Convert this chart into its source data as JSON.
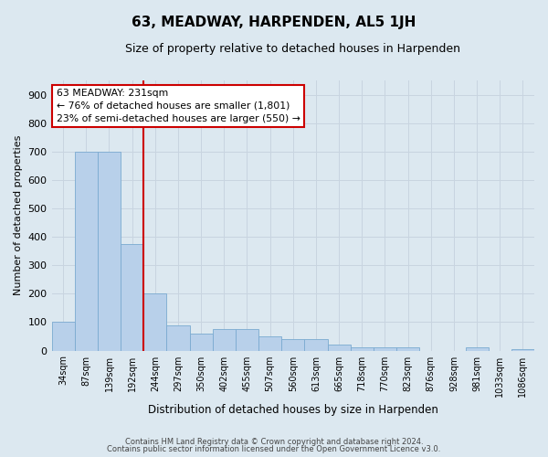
{
  "title": "63, MEADWAY, HARPENDEN, AL5 1JH",
  "subtitle": "Size of property relative to detached houses in Harpenden",
  "xlabel": "Distribution of detached houses by size in Harpenden",
  "ylabel": "Number of detached properties",
  "footer_line1": "Contains HM Land Registry data © Crown copyright and database right 2024.",
  "footer_line2": "Contains public sector information licensed under the Open Government Licence v3.0.",
  "categories": [
    "34sqm",
    "87sqm",
    "139sqm",
    "192sqm",
    "244sqm",
    "297sqm",
    "350sqm",
    "402sqm",
    "455sqm",
    "507sqm",
    "560sqm",
    "613sqm",
    "665sqm",
    "718sqm",
    "770sqm",
    "823sqm",
    "876sqm",
    "928sqm",
    "981sqm",
    "1033sqm",
    "1086sqm"
  ],
  "values": [
    100,
    700,
    700,
    375,
    200,
    90,
    60,
    75,
    75,
    50,
    40,
    40,
    20,
    10,
    10,
    10,
    0,
    0,
    10,
    0,
    5
  ],
  "bar_color": "#b8d0ea",
  "bar_edge_color": "#7aaad0",
  "grid_color": "#c8d4e0",
  "bg_color": "#dce8f0",
  "annotation_text": "63 MEADWAY: 231sqm\n← 76% of detached houses are smaller (1,801)\n23% of semi-detached houses are larger (550) →",
  "annotation_box_color": "#ffffff",
  "annotation_box_edge": "#cc0000",
  "vline_color": "#cc0000",
  "vline_x_index": 3.5,
  "ylim": [
    0,
    950
  ],
  "yticks": [
    0,
    100,
    200,
    300,
    400,
    500,
    600,
    700,
    800,
    900
  ]
}
